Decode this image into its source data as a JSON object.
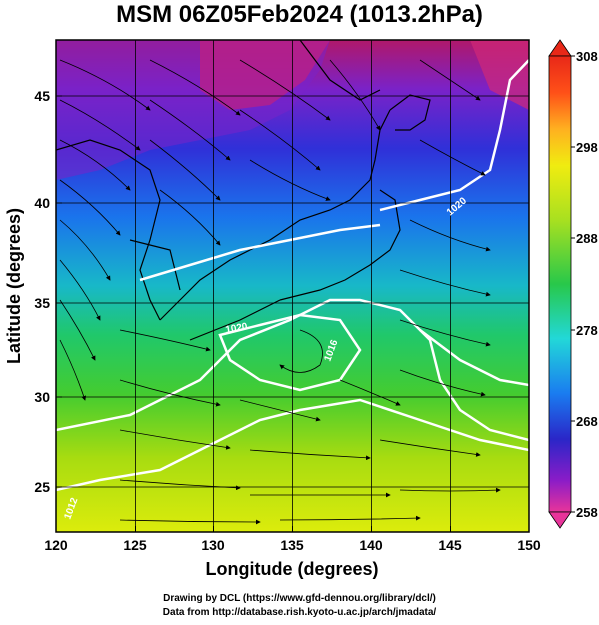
{
  "title": "MSM 06Z05Feb2024 (1013.2hPa)",
  "x_axis": {
    "label": "Longitude (degrees)",
    "ticks": [
      "120",
      "125",
      "130",
      "135",
      "140",
      "145",
      "150"
    ],
    "range": [
      120,
      150
    ]
  },
  "y_axis": {
    "label": "Latitude  (degrees)",
    "ticks": [
      "25",
      "30",
      "35",
      "40",
      "45"
    ],
    "range": [
      22.5,
      48
    ]
  },
  "colorbar": {
    "ticks": [
      "308",
      "298",
      "288",
      "278",
      "268",
      "258"
    ],
    "range": [
      258,
      308
    ],
    "colors": [
      "#e8349a",
      "#8a1cc8",
      "#2a26c8",
      "#1a7cf0",
      "#22d8d8",
      "#28c84a",
      "#a8e020",
      "#f0ec10",
      "#ffb020",
      "#ff5018",
      "#e82818"
    ]
  },
  "contour_labels": [
    "1020",
    "1020",
    "1016",
    "1012"
  ],
  "footer": {
    "line1": "Drawing by DCL (https://www.gfd-dennou.org/library/dcl/)",
    "line2": "Data from http://database.rish.kyoto-u.ac.jp/arch/jmadata/"
  },
  "colors": {
    "land_outline": "#000000",
    "isobar": "#ffffff",
    "streamline": "#000000",
    "grid": "#000000"
  }
}
